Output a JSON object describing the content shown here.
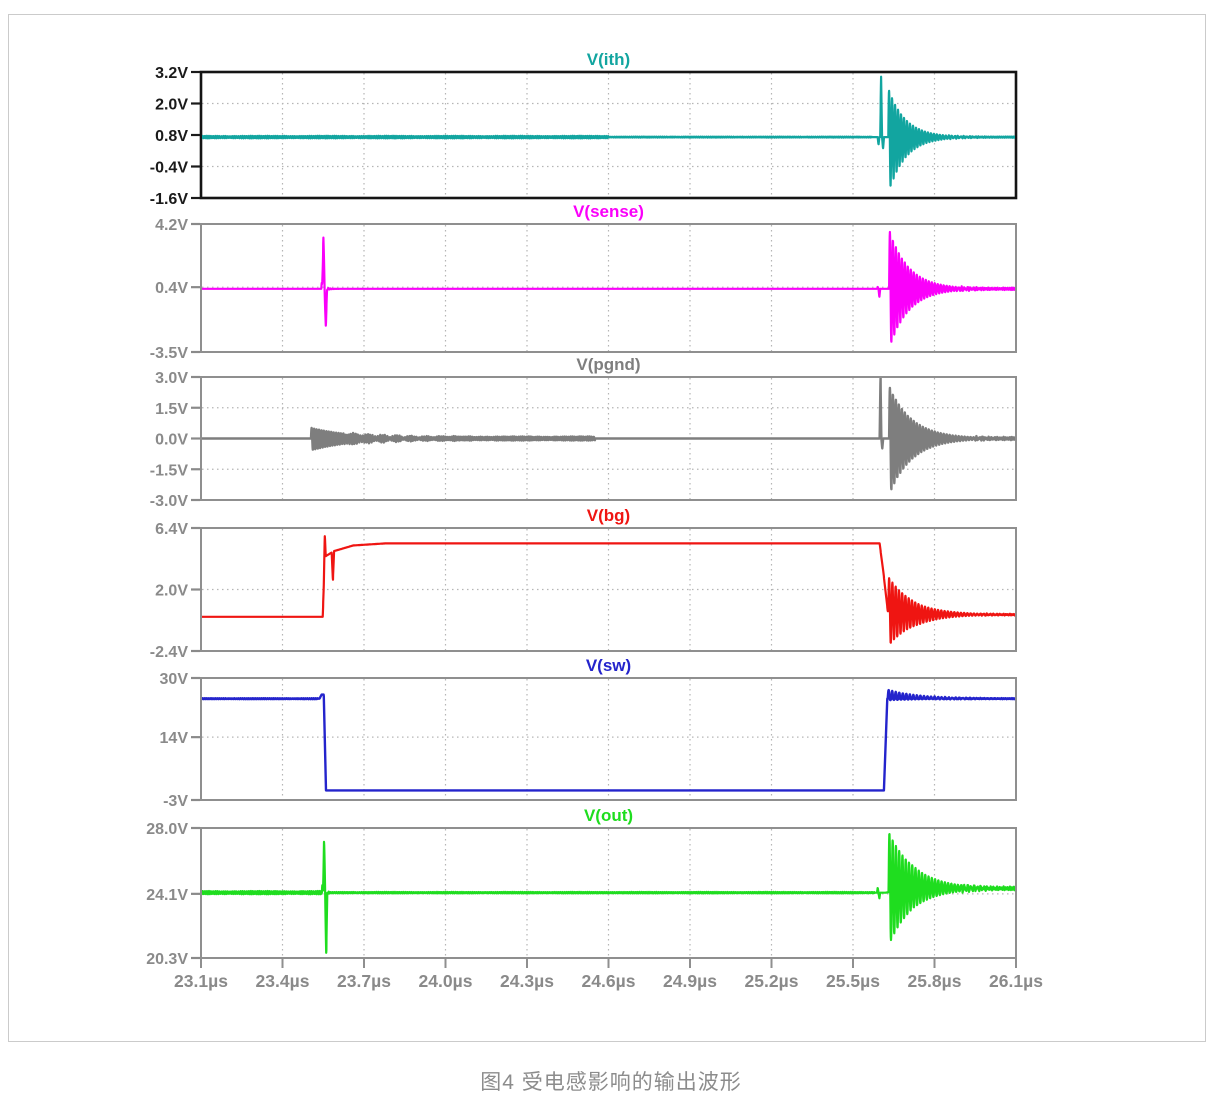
{
  "figure": {
    "caption": "图4 受电感影响的输出波形"
  },
  "chart_data": {
    "type": "line",
    "x_unit": "µs",
    "t_start": 23.1,
    "t_end": 26.1,
    "x_ticks": [
      23.1,
      23.4,
      23.7,
      24.0,
      24.3,
      24.6,
      24.9,
      25.2,
      25.5,
      25.8,
      26.1
    ],
    "x_tick_labels": [
      "23.1µs",
      "23.4µs",
      "23.7µs",
      "24.0µs",
      "24.3µs",
      "24.6µs",
      "24.9µs",
      "25.2µs",
      "25.5µs",
      "25.8µs",
      "26.1µs"
    ],
    "style": {
      "grid_color": "#b5b5b5",
      "axis_gray": "#8f8f8f",
      "tick_label_gray": "#8a8a8a",
      "active_panel_border": "#141414",
      "frame_border": "#cbcbcb",
      "caption_gray": "#8c8c8c"
    },
    "panels": [
      {
        "name": "ith",
        "title": "V(ith)",
        "color": "#12a5a0",
        "border_color": "#141414",
        "border_width": 2.6,
        "label_color": "#1a1a1a",
        "line_width": 2.2,
        "ylim": [
          -1.6,
          3.2
        ],
        "yticks": [
          {
            "v": 3.2,
            "label": "3.2V"
          },
          {
            "v": 2.0,
            "label": "2.0V"
          },
          {
            "v": 0.8,
            "label": "0.8V"
          },
          {
            "v": -0.4,
            "label": "-0.4V"
          },
          {
            "v": -1.6,
            "label": "-1.6V"
          }
        ],
        "grid": [
          2.0,
          -0.4
        ],
        "levels": [
          [
            23.1,
            0.72
          ],
          [
            26.1,
            0.72
          ]
        ],
        "noise": [
          [
            23.1,
            24.6,
            0.05
          ],
          [
            24.6,
            25.57,
            0.018
          ],
          [
            25.85,
            26.1,
            0.025
          ]
        ],
        "spikes": [
          [
            25.585,
            0,
            0.3,
            0.012
          ],
          [
            25.6,
            2.35,
            0.45,
            0.014
          ]
        ],
        "bursts": [
          [
            25.63,
            1.85,
            2.15,
            0.011,
            16
          ]
        ]
      },
      {
        "name": "sense",
        "title": "V(sense)",
        "color": "#fa00fa",
        "border_color": "#8f8f8f",
        "border_width": 2,
        "label_color": "#8a8a8a",
        "line_width": 2.2,
        "ylim": [
          -3.5,
          4.2
        ],
        "yticks": [
          {
            "v": 4.2,
            "label": "4.2V"
          },
          {
            "v": 0.4,
            "label": "0.4V"
          },
          {
            "v": -3.5,
            "label": "-3.5V"
          }
        ],
        "grid": [
          0.4
        ],
        "levels": [
          [
            23.1,
            0.3
          ],
          [
            26.1,
            0.3
          ]
        ],
        "noise": [
          [
            25.88,
            26.1,
            0.07
          ]
        ],
        "spikes": [
          [
            23.546,
            3.3,
            2.35,
            0.018
          ],
          [
            25.588,
            0.12,
            0.5,
            0.012
          ]
        ],
        "bursts": [
          [
            23.543,
            0.45,
            0.55,
            0.008,
            90
          ],
          [
            25.633,
            3.55,
            3.6,
            0.011,
            14
          ]
        ]
      },
      {
        "name": "pgnd",
        "title": "V(pgnd)",
        "color": "#7e7e7e",
        "border_color": "#8f8f8f",
        "border_width": 2,
        "label_color": "#8a8a8a",
        "line_width": 2.4,
        "ylim": [
          -3.0,
          3.0
        ],
        "yticks": [
          {
            "v": 3.0,
            "label": "3.0V"
          },
          {
            "v": 1.5,
            "label": "1.5V"
          },
          {
            "v": 0.0,
            "label": "0.0V"
          },
          {
            "v": -1.5,
            "label": "-1.5V"
          },
          {
            "v": -3.0,
            "label": "-3.0V"
          }
        ],
        "grid": [
          1.5,
          -1.5
        ],
        "levels": [
          [
            23.1,
            0.0
          ],
          [
            26.1,
            0.0
          ]
        ],
        "noise": [
          [
            23.62,
            24.55,
            0.1
          ],
          [
            25.95,
            26.1,
            0.07
          ]
        ],
        "spikes": [
          [
            25.598,
            3.2,
            0.5,
            0.013
          ]
        ],
        "bursts": [
          [
            23.505,
            0.52,
            0.58,
            0.009,
            6.5
          ],
          [
            25.633,
            2.55,
            2.75,
            0.011,
            12
          ]
        ]
      },
      {
        "name": "bg",
        "title": "V(bg)",
        "color": "#ef1512",
        "border_color": "#8f8f8f",
        "border_width": 2,
        "label_color": "#8a8a8a",
        "line_width": 2.2,
        "ylim": [
          -2.4,
          6.4
        ],
        "yticks": [
          {
            "v": 6.4,
            "label": "6.4V"
          },
          {
            "v": 2.0,
            "label": "2.0V"
          },
          {
            "v": -2.4,
            "label": "-2.4V"
          }
        ],
        "grid": [
          2.0
        ],
        "levels": [
          [
            23.1,
            0.05
          ],
          [
            23.548,
            0.05
          ],
          [
            23.556,
            4.35
          ],
          [
            23.59,
            4.75
          ],
          [
            23.66,
            5.15
          ],
          [
            23.78,
            5.3
          ],
          [
            25.598,
            5.3
          ],
          [
            25.612,
            3.2
          ],
          [
            25.628,
            0.45
          ],
          [
            25.75,
            0.22
          ],
          [
            26.1,
            0.2
          ]
        ],
        "noise": [
          [
            25.97,
            26.1,
            0.05
          ]
        ],
        "spikes": [
          [
            23.552,
            1.72,
            0,
            0.014
          ],
          [
            23.572,
            0,
            2.1,
            0.018
          ]
        ],
        "bursts": [
          [
            25.63,
            2.45,
            2.5,
            0.012,
            11
          ]
        ]
      },
      {
        "name": "sw",
        "title": "V(sw)",
        "color": "#2424cc",
        "border_color": "#8f8f8f",
        "border_width": 2,
        "label_color": "#8a8a8a",
        "line_width": 2.4,
        "ylim": [
          -3,
          30
        ],
        "yticks": [
          {
            "v": 30,
            "label": "30V"
          },
          {
            "v": 14,
            "label": "14V"
          },
          {
            "v": -3,
            "label": "-3V"
          }
        ],
        "grid": [
          14
        ],
        "levels": [
          [
            23.1,
            24.4
          ],
          [
            23.536,
            24.4
          ],
          [
            23.544,
            25.5
          ],
          [
            23.552,
            25.5
          ],
          [
            23.56,
            -0.4
          ],
          [
            25.614,
            -0.4
          ],
          [
            25.626,
            24.4
          ],
          [
            26.1,
            24.4
          ]
        ],
        "noise": [
          [
            23.1,
            23.53,
            0.12
          ],
          [
            25.8,
            26.1,
            0.12
          ]
        ],
        "spikes": [],
        "bursts": [
          [
            25.628,
            2.4,
            0.4,
            0.013,
            9
          ]
        ]
      },
      {
        "name": "out",
        "title": "V(out)",
        "color": "#1fdd1f",
        "border_color": "#8f8f8f",
        "border_width": 2,
        "label_color": "#8a8a8a",
        "line_width": 2.2,
        "ylim": [
          20.3,
          28.0
        ],
        "yticks": [
          {
            "v": 28.0,
            "label": "28.0V"
          },
          {
            "v": 24.1,
            "label": "24.1V"
          },
          {
            "v": 20.3,
            "label": "20.3V"
          }
        ],
        "grid": [
          24.1
        ],
        "levels": [
          [
            23.1,
            24.17
          ],
          [
            25.62,
            24.17
          ],
          [
            25.72,
            24.42
          ],
          [
            26.1,
            24.42
          ]
        ],
        "noise": [
          [
            23.1,
            23.545,
            0.1
          ],
          [
            23.56,
            25.58,
            0.045
          ],
          [
            25.9,
            26.1,
            0.1
          ]
        ],
        "spikes": [
          [
            23.549,
            3.15,
            3.85,
            0.016
          ],
          [
            25.588,
            0.3,
            0.35,
            0.012
          ]
        ],
        "bursts": [
          [
            23.545,
            0.55,
            0.6,
            0.008,
            90
          ],
          [
            25.631,
            3.6,
            3.15,
            0.012,
            11
          ]
        ]
      }
    ]
  }
}
